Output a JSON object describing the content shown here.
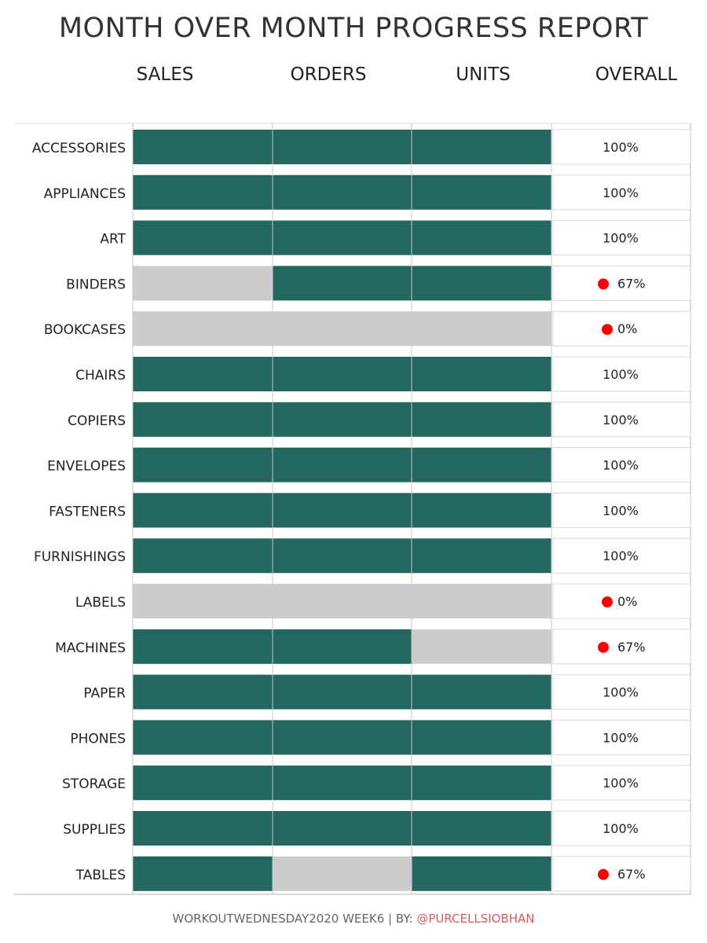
{
  "title": "MONTH OVER MONTH PROGRESS REPORT",
  "columns": [
    "SALES",
    "ORDERS",
    "UNITS",
    "OVERALL"
  ],
  "colors": {
    "complete": "#236760",
    "incomplete": "#cccccc",
    "flag": "#ff0000"
  },
  "footer": {
    "prefix": "WORKOUTWEDNESDAY2020 WEEK6 | BY: ",
    "handle": "@PURCELLSIOBHAN"
  },
  "chart_data": {
    "type": "table",
    "categories": [
      "ACCESSORIES",
      "APPLIANCES",
      "ART",
      "BINDERS",
      "BOOKCASES",
      "CHAIRS",
      "COPIERS",
      "ENVELOPES",
      "FASTENERS",
      "FURNISHINGS",
      "LABELS",
      "MACHINES",
      "PAPER",
      "PHONES",
      "STORAGE",
      "SUPPLIES",
      "TABLES"
    ],
    "series": [
      {
        "name": "SALES",
        "values": [
          1,
          1,
          1,
          0,
          0,
          1,
          1,
          1,
          1,
          1,
          0,
          1,
          1,
          1,
          1,
          1,
          1
        ]
      },
      {
        "name": "ORDERS",
        "values": [
          1,
          1,
          1,
          1,
          0,
          1,
          1,
          1,
          1,
          1,
          0,
          1,
          1,
          1,
          1,
          1,
          0
        ]
      },
      {
        "name": "UNITS",
        "values": [
          1,
          1,
          1,
          1,
          0,
          1,
          1,
          1,
          1,
          1,
          0,
          0,
          1,
          1,
          1,
          1,
          1
        ]
      }
    ],
    "overall": [
      "100%",
      "100%",
      "100%",
      "67%",
      "0%",
      "100%",
      "100%",
      "100%",
      "100%",
      "100%",
      "0%",
      "67%",
      "100%",
      "100%",
      "100%",
      "100%",
      "67%"
    ],
    "flagged": [
      false,
      false,
      false,
      true,
      true,
      false,
      false,
      false,
      false,
      false,
      true,
      true,
      false,
      false,
      false,
      false,
      true
    ]
  }
}
